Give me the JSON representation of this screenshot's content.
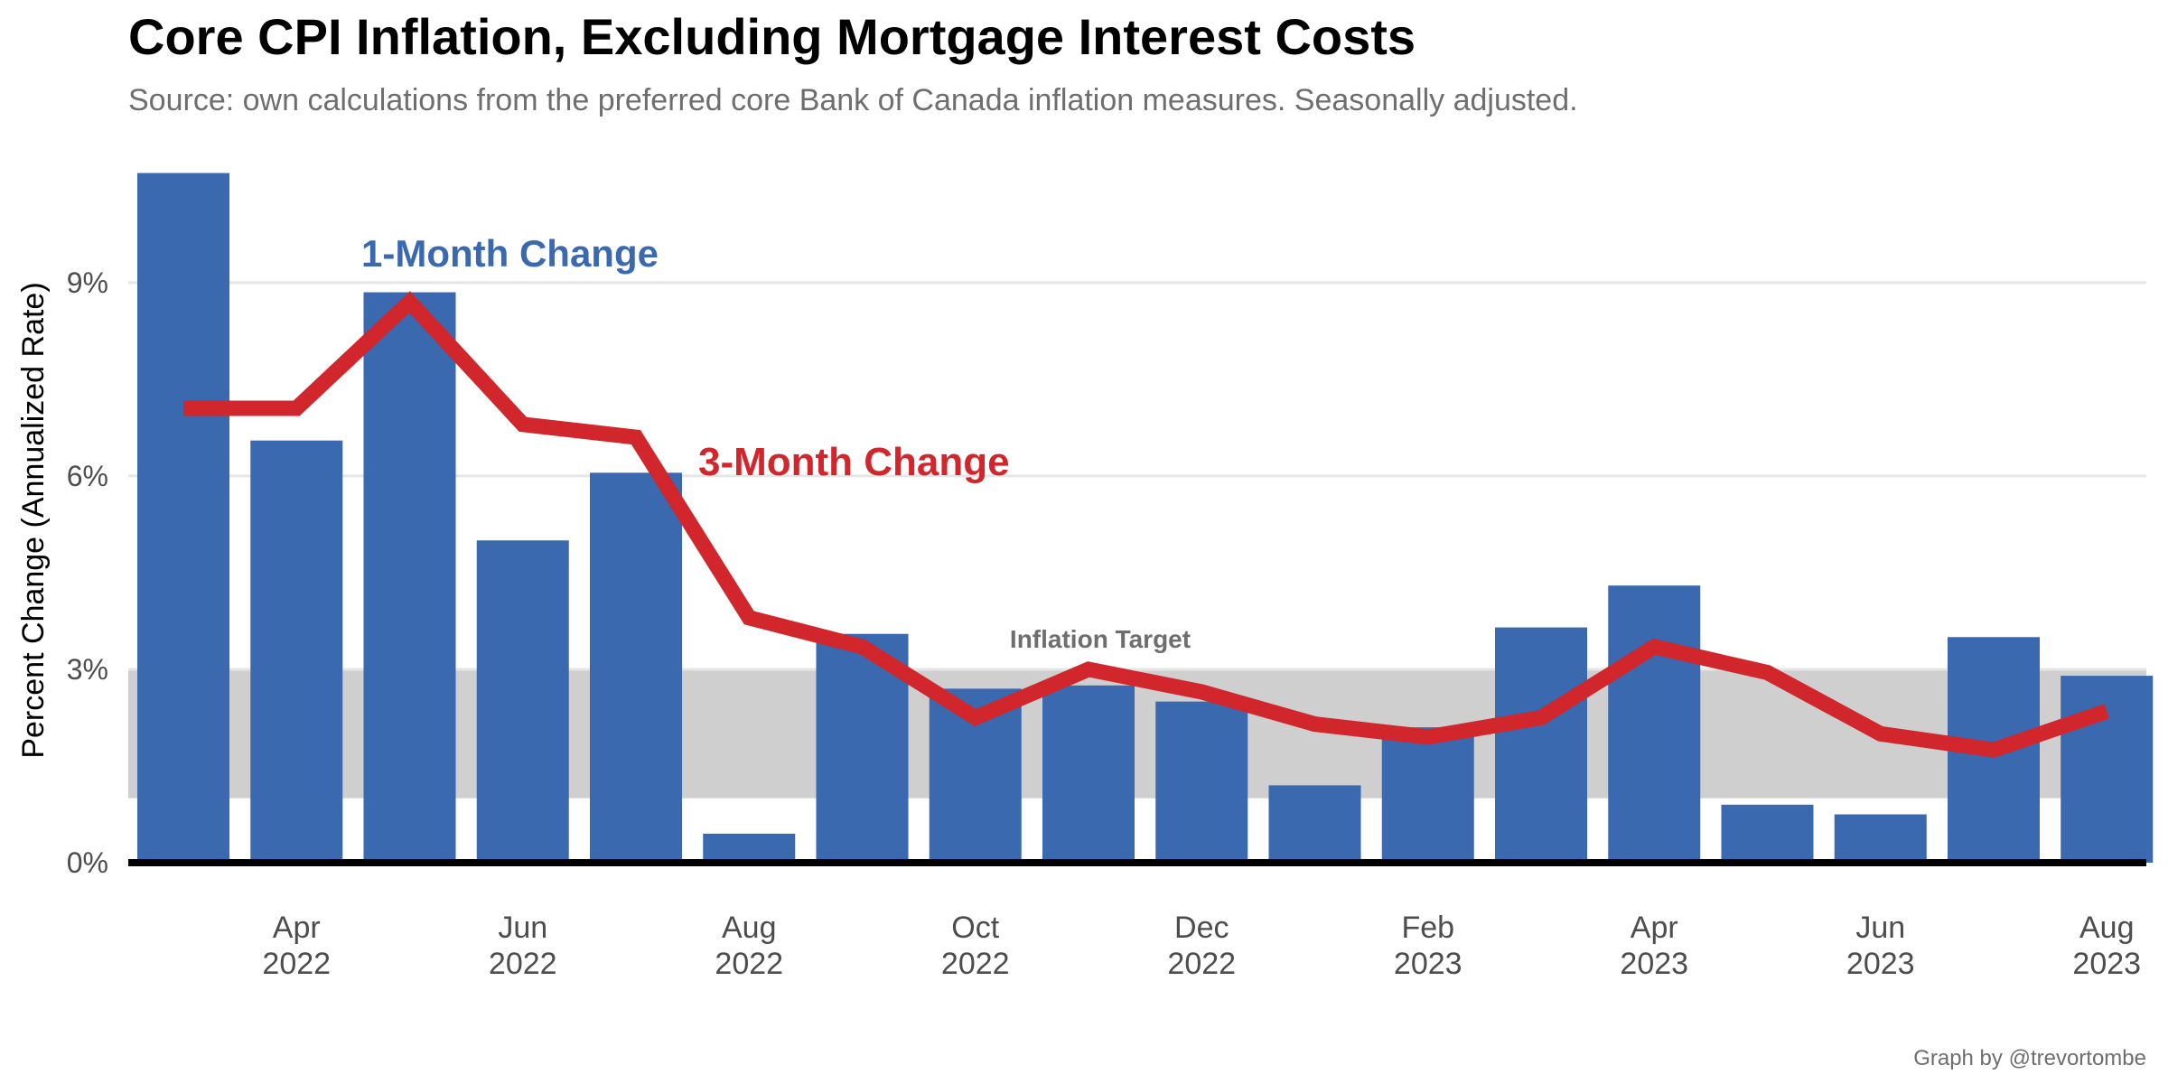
{
  "chart_data": {
    "type": "bar",
    "title": "Core CPI Inflation, Excluding Mortgage Interest Costs",
    "subtitle": "Source: own calculations from the preferred core Bank of Canada inflation measures. Seasonally adjusted.",
    "caption": "Graph by @trevortombe",
    "ylabel": "Percent Change (Annualized Rate)",
    "xlabel": "",
    "ylim": [
      0,
      10.8
    ],
    "yticks": [
      {
        "value": 0,
        "label": "0%"
      },
      {
        "value": 3,
        "label": "3%"
      },
      {
        "value": 6,
        "label": "6%"
      },
      {
        "value": 9,
        "label": "9%"
      }
    ],
    "grid": true,
    "months": [
      "2022-03",
      "2022-04",
      "2022-05",
      "2022-06",
      "2022-07",
      "2022-08",
      "2022-09",
      "2022-10",
      "2022-11",
      "2022-12",
      "2023-01",
      "2023-02",
      "2023-03",
      "2023-04",
      "2023-05",
      "2023-06",
      "2023-07",
      "2023-08"
    ],
    "xticks": [
      {
        "month": "2022-04",
        "line1": "Apr",
        "line2": "2022"
      },
      {
        "month": "2022-06",
        "line1": "Jun",
        "line2": "2022"
      },
      {
        "month": "2022-08",
        "line1": "Aug",
        "line2": "2022"
      },
      {
        "month": "2022-10",
        "line1": "Oct",
        "line2": "2022"
      },
      {
        "month": "2022-12",
        "line1": "Dec",
        "line2": "2022"
      },
      {
        "month": "2023-02",
        "line1": "Feb",
        "line2": "2023"
      },
      {
        "month": "2023-04",
        "line1": "Apr",
        "line2": "2023"
      },
      {
        "month": "2023-06",
        "line1": "Jun",
        "line2": "2023"
      },
      {
        "month": "2023-08",
        "line1": "Aug",
        "line2": "2023"
      }
    ],
    "target_band": {
      "low": 1,
      "high": 3,
      "label": "Inflation Target",
      "color": "#cfcfcf"
    },
    "series": [
      {
        "name": "1-Month Change",
        "type": "bar",
        "color": "#3a69b0",
        "values": [
          10.7,
          6.55,
          8.85,
          5.0,
          6.05,
          0.45,
          3.55,
          2.7,
          2.75,
          2.5,
          1.2,
          2.1,
          3.65,
          4.3,
          0.9,
          0.75,
          3.5,
          2.9
        ]
      },
      {
        "name": "3-Month Change",
        "type": "line",
        "color": "#d0262c",
        "values": [
          7.05,
          7.05,
          8.7,
          6.8,
          6.6,
          3.8,
          3.35,
          2.25,
          3.0,
          2.65,
          2.15,
          1.95,
          2.25,
          3.35,
          2.95,
          2.0,
          1.75,
          2.35
        ]
      }
    ]
  }
}
